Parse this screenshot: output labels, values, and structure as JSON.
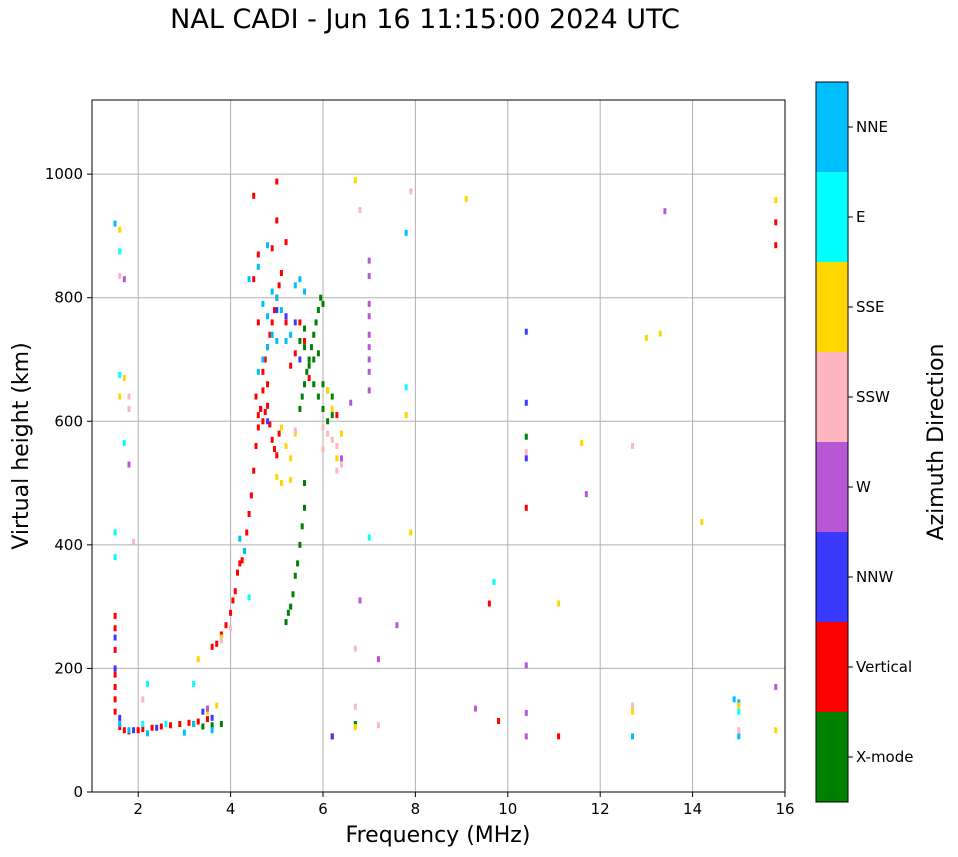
{
  "chart_data": {
    "type": "scatter",
    "title": "NAL CADI - Jun 16 11:15:00 2024 UTC",
    "xlabel": "Frequency (MHz)",
    "ylabel": "Virtual height (km)",
    "xlim": [
      1,
      16
    ],
    "ylim": [
      0,
      1120
    ],
    "xticks": [
      2,
      4,
      6,
      8,
      10,
      12,
      14,
      16
    ],
    "yticks": [
      0,
      200,
      400,
      600,
      800,
      1000
    ],
    "grid": true,
    "colorbar": {
      "label": "Azimuth Direction",
      "categories": [
        {
          "name": "X-mode",
          "color": "#008000"
        },
        {
          "name": "Vertical",
          "color": "#ff0000"
        },
        {
          "name": "NNW",
          "color": "#3a3aff"
        },
        {
          "name": "W",
          "color": "#b857d6"
        },
        {
          "name": "SSW",
          "color": "#ffb6c1"
        },
        {
          "name": "SSE",
          "color": "#ffd700"
        },
        {
          "name": "E",
          "color": "#00ffff"
        },
        {
          "name": "NNE",
          "color": "#00bfff"
        }
      ]
    },
    "series": [
      {
        "name": "Vertical",
        "points": [
          [
            1.6,
            105
          ],
          [
            1.7,
            100
          ],
          [
            1.8,
            98
          ],
          [
            2.0,
            100
          ],
          [
            2.1,
            102
          ],
          [
            2.3,
            104
          ],
          [
            2.5,
            106
          ],
          [
            2.7,
            108
          ],
          [
            2.9,
            110
          ],
          [
            3.1,
            112
          ],
          [
            3.3,
            114
          ],
          [
            3.5,
            118
          ],
          [
            3.6,
            235
          ],
          [
            3.7,
            240
          ],
          [
            3.8,
            255
          ],
          [
            3.9,
            270
          ],
          [
            4.0,
            290
          ],
          [
            4.05,
            310
          ],
          [
            4.1,
            325
          ],
          [
            4.15,
            355
          ],
          [
            4.2,
            370
          ],
          [
            4.25,
            375
          ],
          [
            4.3,
            390
          ],
          [
            4.35,
            420
          ],
          [
            4.4,
            450
          ],
          [
            4.45,
            480
          ],
          [
            4.5,
            520
          ],
          [
            4.55,
            560
          ],
          [
            4.6,
            590
          ],
          [
            4.65,
            620
          ],
          [
            4.7,
            650
          ],
          [
            4.75,
            700
          ],
          [
            4.8,
            720
          ],
          [
            4.85,
            740
          ],
          [
            4.9,
            760
          ],
          [
            4.95,
            780
          ],
          [
            5.0,
            800
          ],
          [
            5.05,
            820
          ],
          [
            5.1,
            840
          ],
          [
            4.55,
            640
          ],
          [
            4.6,
            610
          ],
          [
            4.65,
            620
          ],
          [
            4.7,
            600
          ],
          [
            4.75,
            615
          ],
          [
            4.8,
            625
          ],
          [
            4.85,
            595
          ],
          [
            4.9,
            570
          ],
          [
            4.95,
            555
          ],
          [
            5.0,
            545
          ],
          [
            5.05,
            580
          ],
          [
            4.6,
            760
          ],
          [
            4.7,
            680
          ],
          [
            4.8,
            660
          ],
          [
            5.2,
            760
          ],
          [
            5.3,
            690
          ],
          [
            5.4,
            710
          ],
          [
            5.5,
            760
          ],
          [
            5.6,
            730
          ],
          [
            5.7,
            670
          ],
          [
            4.5,
            965
          ],
          [
            5.0,
            988
          ],
          [
            5.0,
            925
          ],
          [
            4.9,
            880
          ],
          [
            5.2,
            890
          ],
          [
            4.5,
            830
          ],
          [
            4.6,
            870
          ],
          [
            1.5,
            285
          ],
          [
            1.5,
            265
          ],
          [
            1.5,
            230
          ],
          [
            1.5,
            190
          ],
          [
            1.5,
            170
          ],
          [
            1.5,
            150
          ],
          [
            1.5,
            130
          ],
          [
            6.3,
            610
          ],
          [
            9.6,
            305
          ],
          [
            9.8,
            115
          ],
          [
            10.4,
            460
          ],
          [
            11.1,
            90
          ],
          [
            6.2,
            90
          ],
          [
            15.8,
            922
          ],
          [
            15.8,
            885
          ]
        ]
      },
      {
        "name": "X-mode",
        "points": [
          [
            5.3,
            300
          ],
          [
            5.35,
            320
          ],
          [
            5.4,
            350
          ],
          [
            5.45,
            370
          ],
          [
            5.5,
            400
          ],
          [
            5.55,
            430
          ],
          [
            5.6,
            460
          ],
          [
            5.6,
            500
          ],
          [
            5.5,
            620
          ],
          [
            5.55,
            640
          ],
          [
            5.6,
            660
          ],
          [
            5.65,
            680
          ],
          [
            5.7,
            700
          ],
          [
            5.75,
            720
          ],
          [
            5.8,
            740
          ],
          [
            5.85,
            760
          ],
          [
            5.9,
            780
          ],
          [
            5.95,
            800
          ],
          [
            6.0,
            790
          ],
          [
            5.6,
            720
          ],
          [
            5.7,
            690
          ],
          [
            5.8,
            660
          ],
          [
            5.9,
            640
          ],
          [
            6.0,
            620
          ],
          [
            6.1,
            600
          ],
          [
            6.2,
            610
          ],
          [
            5.5,
            730
          ],
          [
            5.6,
            750
          ],
          [
            6.0,
            660
          ],
          [
            6.1,
            650
          ],
          [
            6.2,
            640
          ],
          [
            5.8,
            700
          ],
          [
            5.9,
            710
          ],
          [
            5.2,
            275
          ],
          [
            5.25,
            290
          ],
          [
            3.2,
            110
          ],
          [
            3.4,
            106
          ],
          [
            3.6,
            108
          ],
          [
            3.8,
            110
          ],
          [
            10.4,
            575
          ],
          [
            6.7,
            110
          ]
        ]
      },
      {
        "name": "NNE",
        "points": [
          [
            1.5,
            920
          ],
          [
            4.4,
            830
          ],
          [
            4.6,
            850
          ],
          [
            4.7,
            790
          ],
          [
            4.8,
            770
          ],
          [
            4.9,
            810
          ],
          [
            5.0,
            800
          ],
          [
            5.1,
            780
          ],
          [
            5.2,
            730
          ],
          [
            5.3,
            740
          ],
          [
            5.4,
            820
          ],
          [
            5.5,
            830
          ],
          [
            5.6,
            810
          ],
          [
            4.6,
            680
          ],
          [
            4.7,
            700
          ],
          [
            4.8,
            720
          ],
          [
            4.9,
            740
          ],
          [
            5.0,
            730
          ],
          [
            4.2,
            410
          ],
          [
            4.3,
            390
          ],
          [
            1.6,
            110
          ],
          [
            1.8,
            100
          ],
          [
            2.2,
            95
          ],
          [
            3.0,
            96
          ],
          [
            3.2,
            110
          ],
          [
            3.6,
            100
          ],
          [
            7.8,
            905
          ],
          [
            12.7,
            90
          ],
          [
            15.0,
            90
          ],
          [
            14.9,
            150
          ],
          [
            15.0,
            145
          ],
          [
            4.8,
            885
          ]
        ]
      },
      {
        "name": "E",
        "points": [
          [
            1.6,
            675
          ],
          [
            1.7,
            565
          ],
          [
            1.5,
            420
          ],
          [
            1.5,
            380
          ],
          [
            1.6,
            875
          ],
          [
            2.2,
            175
          ],
          [
            3.2,
            175
          ],
          [
            7.0,
            412
          ],
          [
            7.8,
            655
          ],
          [
            9.7,
            340
          ],
          [
            4.4,
            315
          ],
          [
            2.1,
            110
          ],
          [
            2.6,
            110
          ],
          [
            15.0,
            130
          ]
        ]
      },
      {
        "name": "SSE",
        "points": [
          [
            1.6,
            910
          ],
          [
            1.7,
            670
          ],
          [
            1.6,
            640
          ],
          [
            3.3,
            215
          ],
          [
            3.5,
            130
          ],
          [
            3.7,
            140
          ],
          [
            3.8,
            250
          ],
          [
            5.1,
            590
          ],
          [
            5.2,
            560
          ],
          [
            5.3,
            540
          ],
          [
            5.0,
            510
          ],
          [
            5.1,
            500
          ],
          [
            5.3,
            505
          ],
          [
            5.4,
            580
          ],
          [
            6.1,
            650
          ],
          [
            6.2,
            620
          ],
          [
            6.4,
            580
          ],
          [
            6.3,
            540
          ],
          [
            6.7,
            990
          ],
          [
            9.1,
            960
          ],
          [
            7.8,
            610
          ],
          [
            7.9,
            420
          ],
          [
            11.6,
            565
          ],
          [
            11.1,
            305
          ],
          [
            12.7,
            130
          ],
          [
            13.0,
            735
          ],
          [
            13.3,
            742
          ],
          [
            14.2,
            437
          ],
          [
            15.0,
            140
          ],
          [
            15.8,
            958
          ],
          [
            15.8,
            100
          ],
          [
            6.7,
            105
          ]
        ]
      },
      {
        "name": "SSW",
        "points": [
          [
            1.6,
            835
          ],
          [
            1.8,
            640
          ],
          [
            1.8,
            620
          ],
          [
            1.9,
            405
          ],
          [
            2.1,
            150
          ],
          [
            5.4,
            585
          ],
          [
            6.0,
            590
          ],
          [
            6.1,
            580
          ],
          [
            6.2,
            570
          ],
          [
            6.3,
            560
          ],
          [
            6.4,
            530
          ],
          [
            6.3,
            520
          ],
          [
            6.0,
            555
          ],
          [
            6.8,
            942
          ],
          [
            7.9,
            972
          ],
          [
            6.7,
            232
          ],
          [
            6.7,
            138
          ],
          [
            7.2,
            108
          ],
          [
            10.4,
            550
          ],
          [
            12.7,
            560
          ],
          [
            12.7,
            140
          ],
          [
            15.0,
            100
          ],
          [
            4.0,
            265
          ],
          [
            3.8,
            245
          ]
        ]
      },
      {
        "name": "W",
        "points": [
          [
            1.7,
            830
          ],
          [
            1.8,
            530
          ],
          [
            7.0,
            860
          ],
          [
            7.0,
            835
          ],
          [
            7.0,
            790
          ],
          [
            7.0,
            770
          ],
          [
            7.0,
            740
          ],
          [
            7.0,
            720
          ],
          [
            7.0,
            700
          ],
          [
            7.0,
            680
          ],
          [
            7.0,
            650
          ],
          [
            6.6,
            630
          ],
          [
            6.8,
            310
          ],
          [
            7.2,
            215
          ],
          [
            7.6,
            270
          ],
          [
            9.3,
            135
          ],
          [
            10.4,
            205
          ],
          [
            10.4,
            128
          ],
          [
            10.4,
            90
          ],
          [
            11.7,
            482
          ],
          [
            13.4,
            940
          ],
          [
            15.8,
            170
          ],
          [
            6.4,
            540
          ],
          [
            3.5,
            135
          ]
        ]
      },
      {
        "name": "NNW",
        "points": [
          [
            1.5,
            250
          ],
          [
            1.5,
            200
          ],
          [
            1.6,
            120
          ],
          [
            1.9,
            100
          ],
          [
            2.4,
            104
          ],
          [
            3.4,
            130
          ],
          [
            3.6,
            120
          ],
          [
            10.4,
            745
          ],
          [
            10.4,
            630
          ],
          [
            10.4,
            540
          ],
          [
            5.2,
            770
          ],
          [
            5.4,
            760
          ],
          [
            5.5,
            700
          ],
          [
            4.8,
            600
          ],
          [
            6.2,
            90
          ],
          [
            5.0,
            780
          ]
        ]
      }
    ]
  }
}
